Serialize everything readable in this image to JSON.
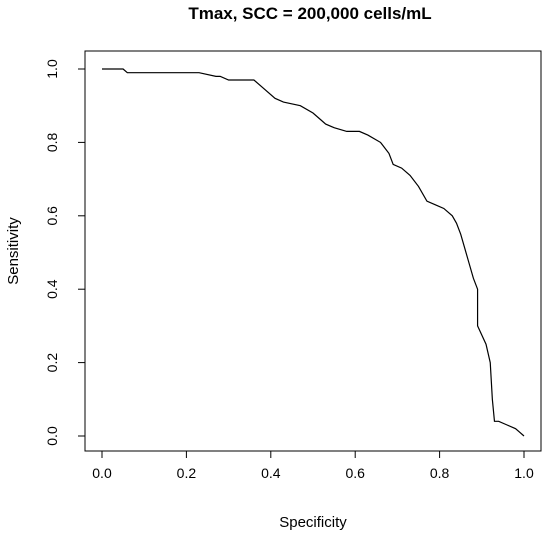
{
  "chart_data": {
    "type": "line",
    "title": "Tmax, SCC = 200,000 cells/mL",
    "xlabel": "Specificity",
    "ylabel": "Sensitivity",
    "xlim": [
      0,
      1
    ],
    "ylim": [
      0,
      1
    ],
    "grid": false,
    "legend": "none",
    "x_ticks": [
      "0.0",
      "0.2",
      "0.4",
      "0.6",
      "0.8",
      "1.0"
    ],
    "y_ticks": [
      "0.0",
      "0.2",
      "0.4",
      "0.6",
      "0.8",
      "1.0"
    ],
    "series": [
      {
        "x": [
          0.0,
          0.05,
          0.06,
          0.23,
          0.27,
          0.28,
          0.3,
          0.36,
          0.38,
          0.41,
          0.43,
          0.47,
          0.5,
          0.52,
          0.53,
          0.55,
          0.58,
          0.61,
          0.63,
          0.66,
          0.68,
          0.69,
          0.71,
          0.73,
          0.75,
          0.77,
          0.79,
          0.81,
          0.83,
          0.84,
          0.85,
          0.86,
          0.87,
          0.88,
          0.89,
          0.89,
          0.91,
          0.92,
          0.925,
          0.93,
          0.94,
          0.96,
          0.98,
          0.99,
          1.0
        ],
        "y": [
          1.0,
          1.0,
          0.99,
          0.99,
          0.98,
          0.98,
          0.97,
          0.97,
          0.95,
          0.92,
          0.91,
          0.9,
          0.88,
          0.86,
          0.85,
          0.84,
          0.83,
          0.83,
          0.82,
          0.8,
          0.77,
          0.74,
          0.73,
          0.71,
          0.68,
          0.64,
          0.63,
          0.62,
          0.6,
          0.58,
          0.55,
          0.51,
          0.47,
          0.43,
          0.4,
          0.3,
          0.25,
          0.2,
          0.1,
          0.04,
          0.04,
          0.03,
          0.02,
          0.01,
          0.0
        ]
      }
    ]
  }
}
